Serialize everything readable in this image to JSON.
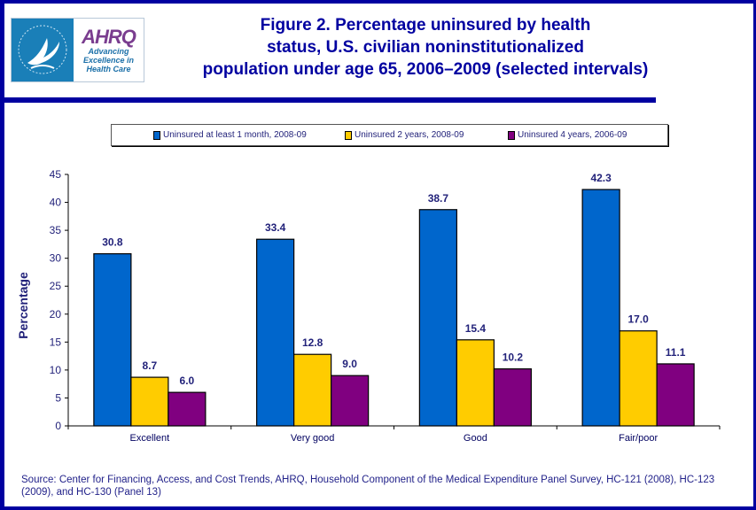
{
  "logo": {
    "brand": "AHRQ",
    "tagline_lines": [
      "Advancing",
      "Excellence in",
      "Health Care"
    ]
  },
  "title_lines": [
    "Figure 2. Percentage uninsured by health",
    "status, U.S. civilian noninstitutionalized",
    "population under age 65, 2006–2009 (selected intervals)"
  ],
  "colors": {
    "frame": "#0000A0",
    "text": "#22227a",
    "series": [
      "#0066CC",
      "#FFCC00",
      "#800080"
    ]
  },
  "chart_data": {
    "type": "bar",
    "title": "Figure 2. Percentage uninsured by health status, U.S. civilian noninstitutionalized population under age 65, 2006–2009 (selected intervals)",
    "xlabel": "",
    "ylabel": "Percentage",
    "ylim": [
      0,
      45
    ],
    "yticks": [
      0,
      5,
      10,
      15,
      20,
      25,
      30,
      35,
      40,
      45
    ],
    "grid": false,
    "legend_position": "top",
    "categories": [
      "Excellent",
      "Very good",
      "Good",
      "Fair/poor"
    ],
    "series": [
      {
        "name": "Uninsured at least 1 month, 2008-09",
        "values": [
          30.8,
          33.4,
          38.7,
          42.3
        ],
        "labels": [
          "30.8",
          "33.4",
          "38.7",
          "42.3"
        ]
      },
      {
        "name": "Uninsured 2 years, 2008-09",
        "values": [
          8.7,
          12.8,
          15.4,
          17.0
        ],
        "labels": [
          "8.7",
          "12.8",
          "15.4",
          "17.0"
        ]
      },
      {
        "name": "Uninsured 4 years, 2006-09",
        "values": [
          6.0,
          9.0,
          10.2,
          11.1
        ],
        "labels": [
          "6.0",
          "9.0",
          "10.2",
          "11.1"
        ]
      }
    ]
  },
  "source_text": "Source: Center for Financing, Access, and Cost Trends, AHRQ, Household Component of the Medical Expenditure Panel Survey, HC-121 (2008), HC-123 (2009), and HC-130 (Panel 13)"
}
